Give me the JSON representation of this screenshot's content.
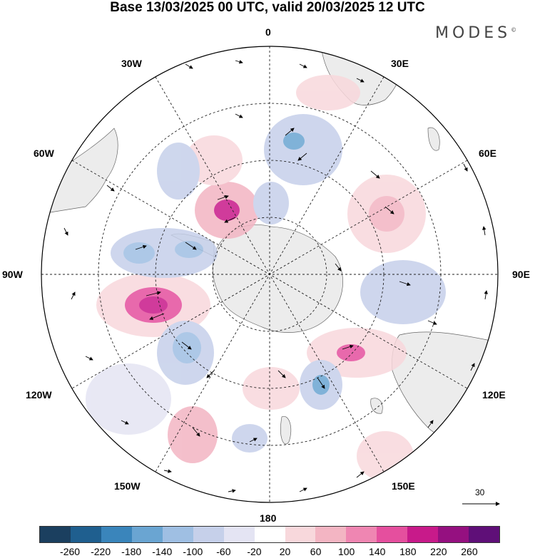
{
  "title": "Base 13/03/2025 00 UTC, valid 20/03/2025 12 UTC",
  "brand": "MODES",
  "brand_mark": "©",
  "longitude_labels": {
    "lon_0": "0",
    "lon_30e": "30E",
    "lon_60e": "60E",
    "lon_90e": "90E",
    "lon_120e": "120E",
    "lon_150e": "150E",
    "lon_180": "180",
    "lon_150w": "150W",
    "lon_120w": "120W",
    "lon_90w": "90W",
    "lon_60w": "60W",
    "lon_30w": "30W"
  },
  "vector_scale_label": "30",
  "colorbar": {
    "colors": [
      "#1b3f5f",
      "#1f5f8f",
      "#3a85bb",
      "#6aa5d2",
      "#9fbfe3",
      "#c6d0ea",
      "#e4e4f3",
      "#ffffff",
      "#f8d8dc",
      "#f3b5c3",
      "#ef86b2",
      "#e54f9e",
      "#c81a8a",
      "#951080",
      "#5f0f78"
    ],
    "tick_labels": [
      "-260",
      "-220",
      "-180",
      "-140",
      "-100",
      "-60",
      "-20",
      "20",
      "60",
      "100",
      "140",
      "180",
      "220",
      "260"
    ]
  }
}
